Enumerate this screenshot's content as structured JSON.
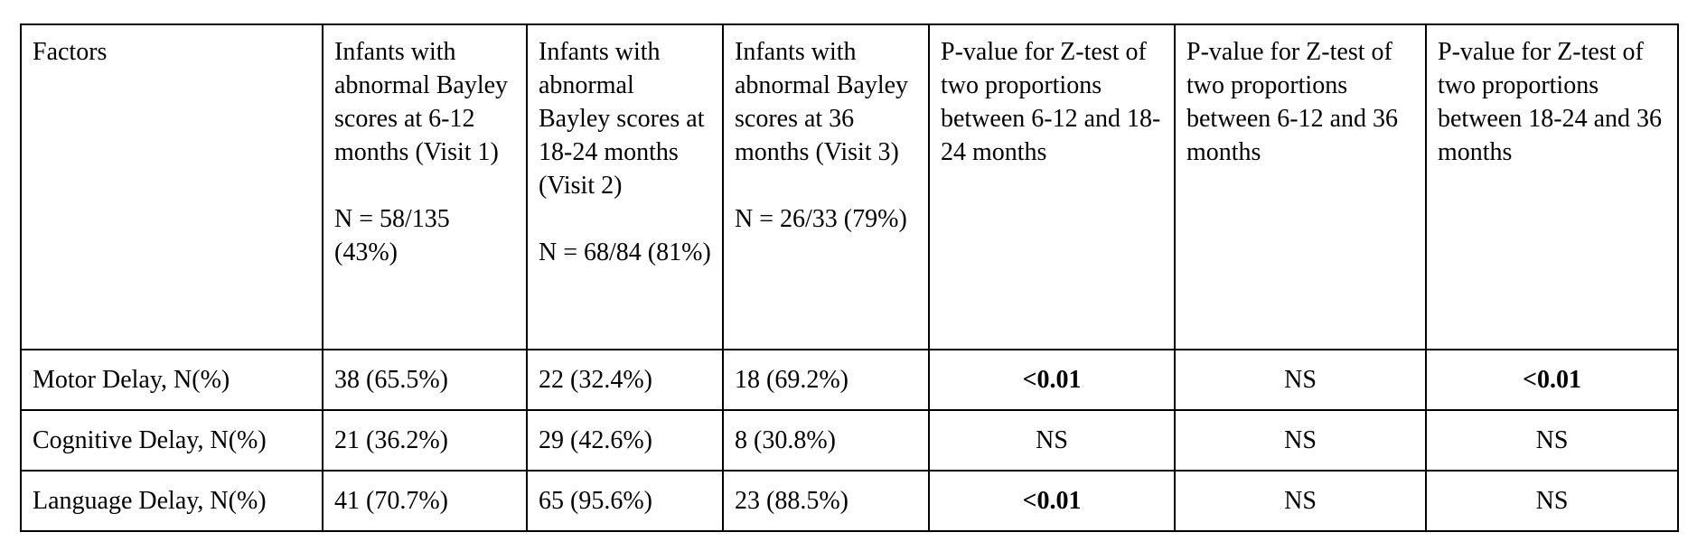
{
  "table": {
    "header": {
      "factors": "Factors",
      "visit1": {
        "label": "Infants with abnormal Bayley scores at 6-12 months (Visit 1)",
        "n": "N = 58/135 (43%)"
      },
      "visit2": {
        "label": "Infants with abnormal Bayley scores at 18-24 months (Visit 2)",
        "n": "N = 68/84 (81%)"
      },
      "visit3": {
        "label": "Infants with abnormal Bayley scores at 36 months (Visit 3)",
        "n": "N = 26/33 (79%)"
      },
      "p12": "P-value for Z-test of two proportions between 6-12 and 18-24 months",
      "p13": "P-value for Z-test of two proportions between 6-12 and 36 months",
      "p23": "P-value for Z-test of two proportions between 18-24 and 36 months"
    },
    "rows": [
      {
        "factor": "Motor Delay, N(%)",
        "v1": "38 (65.5%)",
        "v2": "22 (32.4%)",
        "v3": "18 (69.2%)",
        "p12": "<0.01",
        "p13": "NS",
        "p23": "<0.01"
      },
      {
        "factor": "Cognitive Delay, N(%)",
        "v1": "21 (36.2%)",
        "v2": "29 (42.6%)",
        "v3": "8 (30.8%)",
        "p12": "NS",
        "p13": "NS",
        "p23": "NS"
      },
      {
        "factor": "Language Delay, N(%)",
        "v1": "41 (70.7%)",
        "v2": "65 (95.6%)",
        "v3": "23 (88.5%)",
        "p12": "<0.01",
        "p13": "NS",
        "p23": "NS"
      }
    ]
  }
}
